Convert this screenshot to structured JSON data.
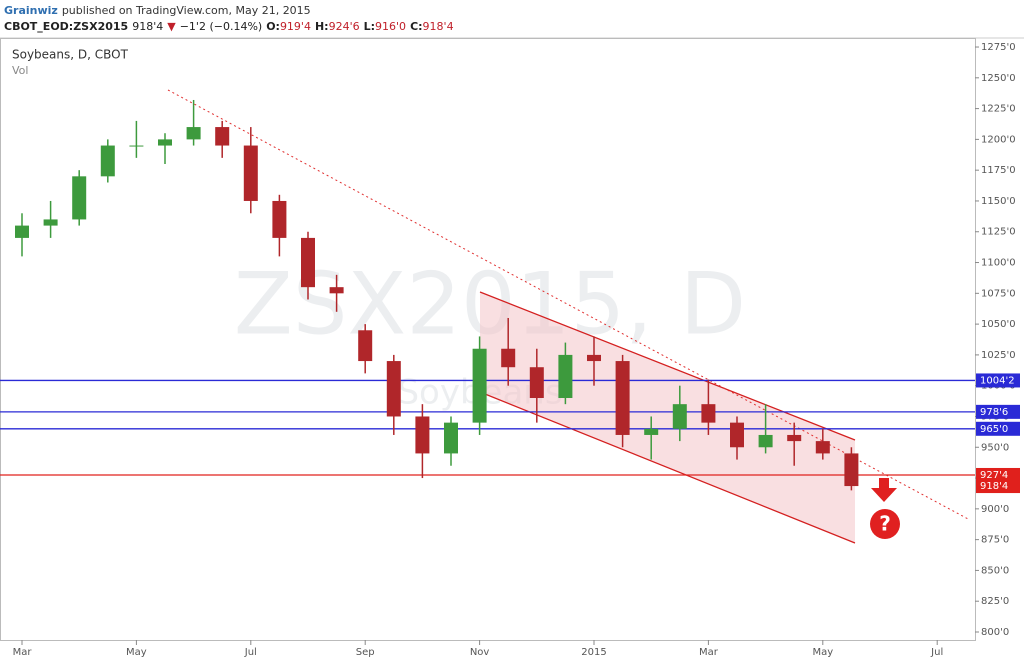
{
  "header": {
    "author": "Grainwiz",
    "published": "published on TradingView.com, May 21, 2015",
    "symbol": "CBOT_EOD:ZSX2015",
    "last": "918'4",
    "arrow": "▼",
    "change": "−1'2 (−0.14%)",
    "ohlc": [
      {
        "label": "O:",
        "value": "919'4"
      },
      {
        "label": "H:",
        "value": "924'6"
      },
      {
        "label": "L:",
        "value": "916'0"
      },
      {
        "label": "C:",
        "value": "918'4"
      }
    ]
  },
  "chart_data": {
    "type": "candlestick",
    "title": "Soybeans, D, CBOT",
    "subtitle": "Vol",
    "watermark": "ZSX2015, D",
    "watermark_sub": "Soybeans",
    "up_color": "#3d9a3d",
    "down_color": "#b0262a",
    "categories": [
      "Mar",
      null,
      null,
      null,
      "May",
      null,
      null,
      null,
      "Jul",
      null,
      null,
      null,
      "Sep",
      null,
      null,
      null,
      "Nov",
      null,
      null,
      null,
      "2015",
      null,
      null,
      null,
      "Mar",
      null,
      null,
      null,
      "May",
      null,
      null,
      null,
      "Jul"
    ],
    "open": [
      1120,
      1130,
      1135,
      1170,
      1195,
      1195,
      1200,
      1210,
      1195,
      1150,
      1120,
      1080,
      1045,
      1020,
      975,
      945,
      970,
      1030,
      1015,
      990,
      1025,
      1020,
      960,
      965,
      985,
      970,
      950,
      960,
      955,
      945,
      null,
      null,
      null
    ],
    "high": [
      1140,
      1150,
      1175,
      1200,
      1215,
      1205,
      1232,
      1215,
      1210,
      1155,
      1125,
      1090,
      1050,
      1025,
      985,
      975,
      1040,
      1055,
      1030,
      1035,
      1040,
      1025,
      975,
      1000,
      1005,
      975,
      985,
      970,
      965,
      950,
      null,
      null,
      null
    ],
    "low": [
      1105,
      1120,
      1130,
      1165,
      1185,
      1180,
      1195,
      1185,
      1140,
      1105,
      1070,
      1060,
      1010,
      960,
      925,
      935,
      960,
      1000,
      970,
      985,
      1000,
      950,
      940,
      955,
      960,
      940,
      945,
      935,
      940,
      915,
      null,
      null,
      null
    ],
    "close": [
      1130,
      1135,
      1170,
      1195,
      1195,
      1200,
      1210,
      1195,
      1150,
      1120,
      1080,
      1075,
      1020,
      975,
      945,
      970,
      1030,
      1015,
      990,
      1025,
      1020,
      960,
      965,
      985,
      970,
      950,
      960,
      955,
      945,
      918.5,
      null,
      null,
      null
    ],
    "ylim": [
      793.5,
      1280.7
    ],
    "yticks": [
      {
        "value": 800,
        "label": "800'0"
      },
      {
        "value": 825,
        "label": "825'0"
      },
      {
        "value": 850,
        "label": "850'0"
      },
      {
        "value": 875,
        "label": "875'0"
      },
      {
        "value": 900,
        "label": "900'0"
      },
      {
        "value": 925,
        "label": "925'0"
      },
      {
        "value": 950,
        "label": "950'0"
      },
      {
        "value": 975,
        "label": "975'0"
      },
      {
        "value": 1000,
        "label": "1000'0"
      },
      {
        "value": 1025,
        "label": "1025'0"
      },
      {
        "value": 1050,
        "label": "1050'0"
      },
      {
        "value": 1075,
        "label": "1075'0"
      },
      {
        "value": 1100,
        "label": "1100'0"
      },
      {
        "value": 1125,
        "label": "1125'0"
      },
      {
        "value": 1150,
        "label": "1150'0"
      },
      {
        "value": 1175,
        "label": "1175'0"
      },
      {
        "value": 1200,
        "label": "1200'0"
      },
      {
        "value": 1225,
        "label": "1225'0"
      },
      {
        "value": 1250,
        "label": "1250'0"
      },
      {
        "value": 1275,
        "label": "1275'0"
      }
    ],
    "levels": [
      {
        "value": 1004.25,
        "label": "1004'2",
        "color": "#2a2ad6"
      },
      {
        "value": 978.75,
        "label": "978'6",
        "color": "#2a2ad6"
      },
      {
        "value": 965,
        "label": "965'0",
        "color": "#2a2ad6"
      },
      {
        "value": 927.5,
        "label": "927'4",
        "color": "#e0201c"
      }
    ],
    "last_price": {
      "value": 918.5,
      "label": "918'4",
      "color": "#e0201c"
    }
  }
}
